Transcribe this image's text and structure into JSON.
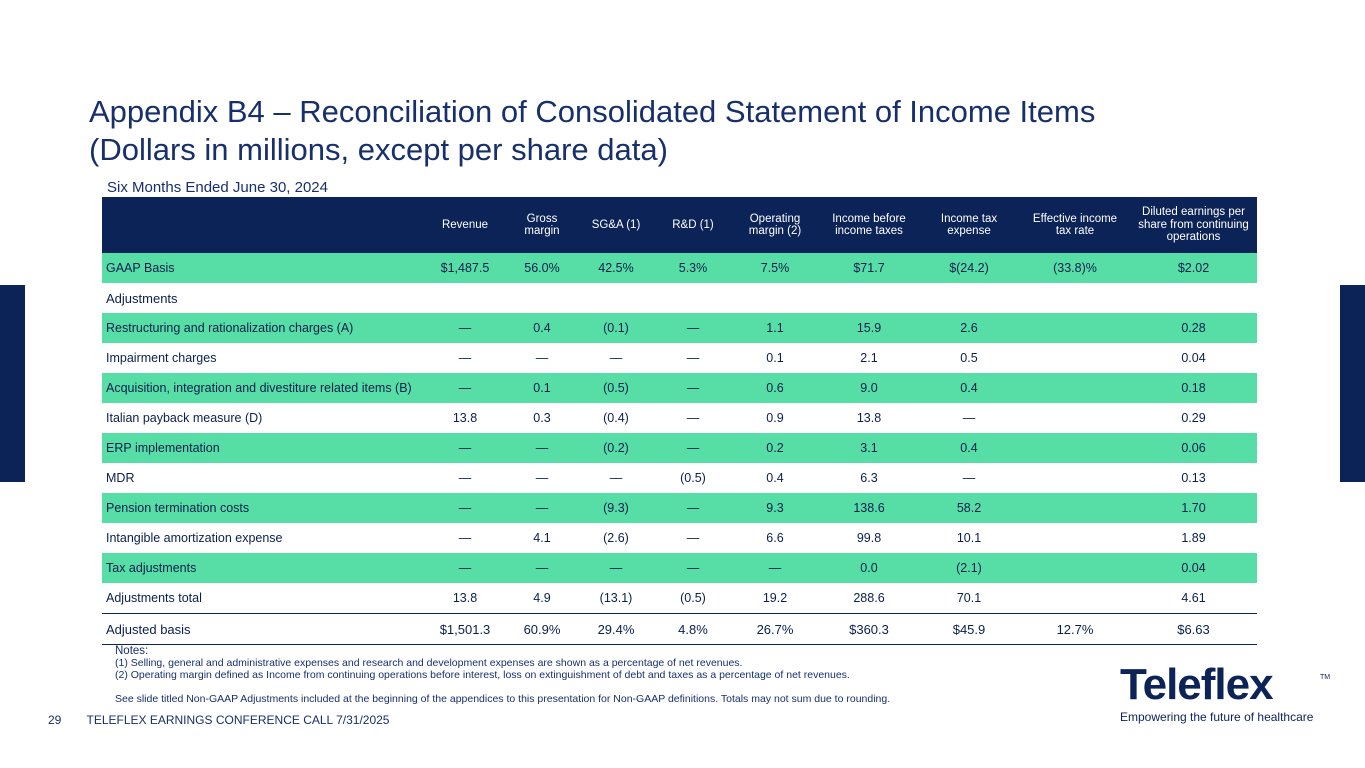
{
  "slide": {
    "title_line1": "Appendix B4 – Reconciliation of Consolidated Statement of Income Items",
    "title_line2": "(Dollars in millions, except per share data)",
    "subtitle": "Six Months Ended June 30, 2024"
  },
  "table": {
    "headers": [
      "",
      "Revenue",
      "Gross margin",
      "SG&A (1)",
      "R&D (1)",
      "Operating margin (2)",
      "Income before income taxes",
      "Income tax expense",
      "Effective income tax rate",
      "Diluted earnings per share from continuing operations"
    ],
    "rows": {
      "gaap": [
        "GAAP Basis",
        "$1,487.5",
        "56.0%",
        "42.5%",
        "5.3%",
        "7.5%",
        "$71.7",
        "$(24.2)",
        "(33.8)%",
        "$2.02"
      ],
      "adjustments_label": "Adjustments",
      "restructuring": [
        "Restructuring and rationalization charges (A)",
        "—",
        "0.4",
        "(0.1)",
        "—",
        "1.1",
        "15.9",
        "2.6",
        "",
        "0.28"
      ],
      "impairment": [
        "Impairment charges",
        "—",
        "—",
        "—",
        "—",
        "0.1",
        "2.1",
        "0.5",
        "",
        "0.04"
      ],
      "acquisition": [
        "Acquisition, integration and divestiture related items (B)",
        "—",
        "0.1",
        "(0.5)",
        "—",
        "0.6",
        "9.0",
        "0.4",
        "",
        "0.18"
      ],
      "italian": [
        "Italian payback measure (D)",
        "13.8",
        "0.3",
        "(0.4)",
        "—",
        "0.9",
        "13.8",
        "—",
        "",
        "0.29"
      ],
      "erp": [
        "ERP implementation",
        "—",
        "—",
        "(0.2)",
        "—",
        "0.2",
        "3.1",
        "0.4",
        "",
        "0.06"
      ],
      "mdr": [
        "MDR",
        "—",
        "—",
        "—",
        "(0.5)",
        "0.4",
        "6.3",
        "—",
        "",
        "0.13"
      ],
      "pension": [
        "Pension termination costs",
        "—",
        "—",
        "(9.3)",
        "—",
        "9.3",
        "138.6",
        "58.2",
        "",
        "1.70"
      ],
      "intangible": [
        "Intangible amortization expense",
        "—",
        "4.1",
        "(2.6)",
        "—",
        "6.6",
        "99.8",
        "10.1",
        "",
        "1.89"
      ],
      "tax": [
        "Tax adjustments",
        "—",
        "—",
        "—",
        "—",
        "—",
        "0.0",
        "(2.1)",
        "",
        "0.04"
      ],
      "adj_total": [
        "Adjustments total",
        "13.8",
        "4.9",
        "(13.1)",
        "(0.5)",
        "19.2",
        "288.6",
        "70.1",
        "",
        "4.61"
      ],
      "adjusted": [
        "Adjusted basis",
        "$1,501.3",
        "60.9%",
        "29.4%",
        "4.8%",
        "26.7%",
        "$360.3",
        "$45.9",
        "12.7%",
        "$6.63"
      ]
    }
  },
  "notes": {
    "heading": "Notes:",
    "note1": "(1) Selling, general and administrative expenses and research and development expenses are shown as a percentage of net revenues.",
    "note2": "(2) Operating margin defined as Income from continuing operations before interest, loss on extinguishment of debt and taxes as a percentage of net revenues.",
    "see": "See slide titled Non-GAAP Adjustments included at the beginning of the appendices to this presentation for Non-GAAP definitions. Totals may not sum due to rounding."
  },
  "footer": {
    "page": "29",
    "text": "TELEFLEX EARNINGS CONFERENCE CALL 7/31/2025"
  },
  "logo": {
    "name": "Teleflex",
    "tm": "TM",
    "tagline": "Empowering the future of healthcare"
  },
  "colors": {
    "navy": "#0c2357",
    "green": "#57dea6"
  }
}
